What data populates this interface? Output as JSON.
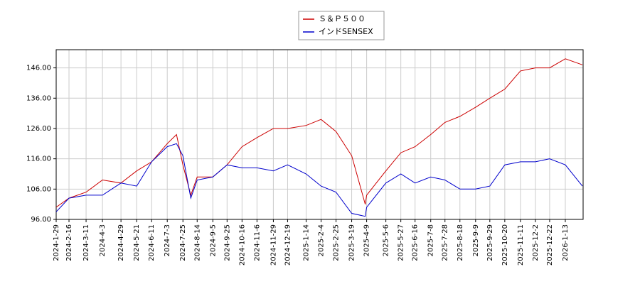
{
  "chart_data": {
    "type": "line",
    "x": [
      "2024-1-29",
      "2024-2-16",
      "2024-3-11",
      "2024-4-3",
      "2024-4-29",
      "2024-5-21",
      "2024-6-11",
      "2024-7-3",
      "2024-7-16",
      "2024-7-25",
      "2024-8-5",
      "2024-8-14",
      "2024-9-5",
      "2024-9-25",
      "2024-10-16",
      "2024-11-6",
      "2024-11-29",
      "2024-12-19",
      "2025-1-14",
      "2025-2-4",
      "2025-2-25",
      "2025-3-19",
      "2025-4-7",
      "2025-4-9",
      "2025-5-6",
      "2025-5-27",
      "2025-6-16",
      "2025-7-8",
      "2025-7-28",
      "2025-8-18",
      "2025-9-9",
      "2025-9-29",
      "2025-10-20",
      "2025-11-11",
      "2025-12-2",
      "2025-12-22",
      "2026-1-13",
      "2026-2-6"
    ],
    "series": [
      {
        "name": "Ｓ＆Ｐ５００",
        "color": "#cc0000",
        "values": [
          100,
          103,
          105,
          109,
          108,
          112,
          115,
          121,
          124,
          114,
          104,
          110,
          110,
          114,
          120,
          123,
          126,
          126,
          127,
          129,
          125,
          117,
          101,
          104,
          112,
          118,
          120,
          124,
          128,
          130,
          133,
          136,
          139,
          145,
          146,
          146,
          149,
          147
        ]
      },
      {
        "name": "インドSENSEX",
        "color": "#0000cc",
        "values": [
          98.5,
          103,
          104,
          104,
          108,
          107,
          115,
          120,
          121,
          117,
          103,
          109,
          110,
          114,
          113,
          113,
          112,
          114,
          111,
          107,
          105,
          98,
          97,
          100,
          108,
          111,
          108,
          110,
          109,
          106,
          106,
          107,
          114,
          115,
          115,
          116,
          114,
          107
        ]
      }
    ],
    "xticks": [
      "2024-1-29",
      "2024-2-16",
      "2024-3-11",
      "2024-4-3",
      "2024-4-29",
      "2024-5-21",
      "2024-6-11",
      "2024-7-3",
      "2024-7-25",
      "2024-8-14",
      "2024-9-5",
      "2024-9-25",
      "2024-10-16",
      "2024-11-6",
      "2024-11-29",
      "2024-12-19",
      "2025-1-14",
      "2025-2-4",
      "2025-2-25",
      "2025-3-19",
      "2025-4-9",
      "2025-5-6",
      "2025-5-27",
      "2025-6-16",
      "2025-7-8",
      "2025-7-28",
      "2025-8-18",
      "2025-9-9",
      "2025-9-29",
      "2025-10-20",
      "2025-11-11",
      "2025-12-2",
      "2025-12-22",
      "2026-1-13"
    ],
    "xlim": [
      "2024-1-29",
      "2026-2-7"
    ],
    "ylim": [
      96,
      152
    ],
    "yticks": [
      {
        "value": 96,
        "label": "96.00"
      },
      {
        "value": 106,
        "label": "106.00"
      },
      {
        "value": 116,
        "label": "116.00"
      },
      {
        "value": 126,
        "label": "126.00"
      },
      {
        "value": 136,
        "label": "136.00"
      },
      {
        "value": 146,
        "label": "146.00"
      }
    ],
    "grid": true,
    "legend": "top"
  }
}
